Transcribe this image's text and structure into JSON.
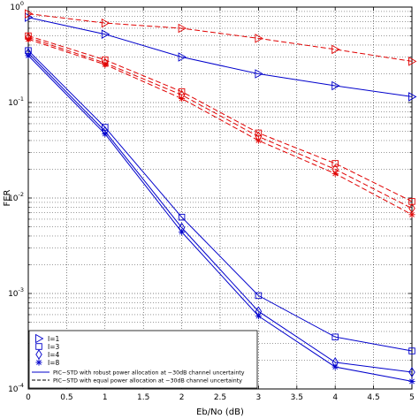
{
  "chart_data": {
    "type": "line",
    "xlabel": "Eb/No (dB)",
    "ylabel": "FER",
    "x": [
      0,
      1,
      2,
      3,
      4,
      5
    ],
    "xlim": [
      0,
      5
    ],
    "ylim": [
      0.0001,
      1
    ],
    "yscale": "log",
    "grid": true,
    "x_ticks": [
      "0",
      "0.5",
      "1",
      "1.5",
      "2",
      "2.5",
      "3",
      "3.5",
      "4",
      "4.5",
      "5"
    ],
    "y_ticks": [
      {
        "base": "10",
        "exp": "0",
        "value": 1
      },
      {
        "base": "10",
        "exp": "-1",
        "value": 0.1
      },
      {
        "base": "10",
        "exp": "-2",
        "value": 0.01
      },
      {
        "base": "10",
        "exp": "-3",
        "value": 0.001
      },
      {
        "base": "10",
        "exp": "-4",
        "value": 0.0001
      }
    ],
    "legend_position": "bottom-left",
    "legend_markers": [
      {
        "label": "I=1",
        "marker": "triangle"
      },
      {
        "label": "I=3",
        "marker": "square"
      },
      {
        "label": "I=4",
        "marker": "diamond"
      },
      {
        "label": "I=8",
        "marker": "star"
      }
    ],
    "legend_lines": [
      {
        "label": "PIC−STD with robust power allocation at −30dB channel uncertainty",
        "style": "solid",
        "color": "#0000cc"
      },
      {
        "label": "PIC−STD with equal power allocation at −30dB channel uncertainty",
        "style": "dashed",
        "color": "#000000"
      }
    ],
    "colors": {
      "robust": "#0000cc",
      "equal": "#e00000"
    },
    "series": [
      {
        "group": "robust",
        "marker": "triangle",
        "values": [
          0.78,
          0.52,
          0.3,
          0.2,
          0.15,
          0.115
        ]
      },
      {
        "group": "robust",
        "marker": "square",
        "values": [
          0.35,
          0.055,
          0.0063,
          0.00095,
          0.00035,
          0.00025
        ]
      },
      {
        "group": "robust",
        "marker": "diamond",
        "values": [
          0.33,
          0.05,
          0.0049,
          0.00065,
          0.00019,
          0.00015
        ]
      },
      {
        "group": "robust",
        "marker": "star",
        "values": [
          0.31,
          0.047,
          0.0044,
          0.00058,
          0.00017,
          0.00012
        ]
      },
      {
        "group": "equal",
        "marker": "triangle",
        "values": [
          0.85,
          0.68,
          0.6,
          0.47,
          0.36,
          0.27
        ]
      },
      {
        "group": "equal",
        "marker": "square",
        "values": [
          0.5,
          0.28,
          0.13,
          0.048,
          0.023,
          0.0092
        ]
      },
      {
        "group": "equal",
        "marker": "diamond",
        "values": [
          0.48,
          0.26,
          0.12,
          0.044,
          0.02,
          0.0078
        ]
      },
      {
        "group": "equal",
        "marker": "star",
        "values": [
          0.46,
          0.25,
          0.11,
          0.04,
          0.018,
          0.0067
        ]
      }
    ]
  }
}
